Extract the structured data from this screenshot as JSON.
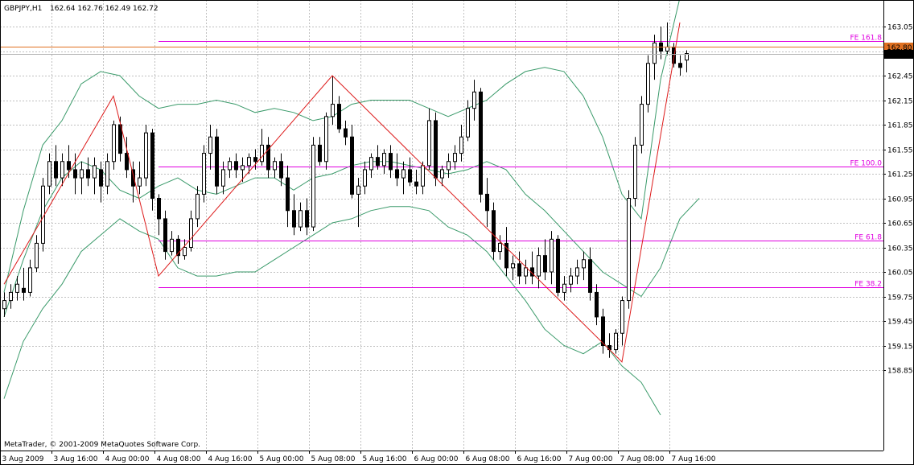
{
  "header": {
    "symbol": "GBPJPY,H1",
    "ohlc": "162.64 162.76 162.49 162.72"
  },
  "copyright": "MetaTrader, © 2001-2009 MetaQuotes Software Corp.",
  "colors": {
    "background": "#ffffff",
    "grid": "#c0c0c0",
    "bull_body": "#ffffff",
    "bear_body": "#000000",
    "candle_outline": "#000000",
    "bollinger": "#3a9a6a",
    "zigzag": "#dd1a1a",
    "fibo": "#e000e0",
    "orange_line": "#e07020",
    "orange_tag": "#e07020",
    "price_tag": "#000000"
  },
  "chart_data": {
    "type": "candlestick",
    "y_axis": {
      "min": 158.8,
      "max": 163.2,
      "ticks": [
        "163.05",
        "162.75",
        "162.45",
        "162.15",
        "161.85",
        "161.55",
        "161.25",
        "160.95",
        "160.65",
        "160.35",
        "160.05",
        "159.75",
        "159.45",
        "159.15",
        "158.85"
      ]
    },
    "x_axis": {
      "labels": [
        "3 Aug 2009",
        "3 Aug 16:00",
        "4 Aug 00:00",
        "4 Aug 08:00",
        "4 Aug 16:00",
        "5 Aug 00:00",
        "5 Aug 08:00",
        "5 Aug 16:00",
        "6 Aug 00:00",
        "6 Aug 08:00",
        "6 Aug 16:00",
        "7 Aug 00:00",
        "7 Aug 08:00",
        "7 Aug 16:00"
      ],
      "bars_per_label": 8
    },
    "price_tags": [
      {
        "value": 162.8,
        "text": "162.80",
        "kind": "orange"
      },
      {
        "value": 162.72,
        "text": "162.72",
        "kind": "current"
      }
    ],
    "fibo_levels": [
      {
        "label": "FE 161.8",
        "value": 162.87
      },
      {
        "label": "FE 100.0",
        "value": 161.34
      },
      {
        "label": "FE 61.8",
        "value": 160.43
      },
      {
        "label": "FE 38.2",
        "value": 159.86
      }
    ],
    "fibo_start_bar": 24,
    "zigzag": [
      {
        "bar": 0,
        "price": 159.9
      },
      {
        "bar": 17,
        "price": 162.2
      },
      {
        "bar": 24,
        "price": 160.0
      },
      {
        "bar": 51,
        "price": 162.45
      },
      {
        "bar": 96,
        "price": 158.95
      },
      {
        "bar": 105,
        "price": 163.1
      }
    ],
    "bollinger_upper": [
      [
        0,
        159.8
      ],
      [
        3,
        160.8
      ],
      [
        6,
        161.6
      ],
      [
        9,
        161.9
      ],
      [
        12,
        162.35
      ],
      [
        15,
        162.5
      ],
      [
        18,
        162.45
      ],
      [
        21,
        162.2
      ],
      [
        24,
        162.05
      ],
      [
        27,
        162.1
      ],
      [
        30,
        162.1
      ],
      [
        33,
        162.15
      ],
      [
        36,
        162.1
      ],
      [
        39,
        162.0
      ],
      [
        42,
        162.05
      ],
      [
        45,
        162.0
      ],
      [
        48,
        161.9
      ],
      [
        51,
        161.95
      ],
      [
        54,
        162.1
      ],
      [
        57,
        162.15
      ],
      [
        60,
        162.15
      ],
      [
        63,
        162.15
      ],
      [
        66,
        162.05
      ],
      [
        69,
        161.95
      ],
      [
        72,
        162.05
      ],
      [
        75,
        162.15
      ],
      [
        78,
        162.35
      ],
      [
        81,
        162.5
      ],
      [
        84,
        162.55
      ],
      [
        87,
        162.5
      ],
      [
        90,
        162.2
      ],
      [
        93,
        161.7
      ],
      [
        96,
        161.0
      ],
      [
        99,
        160.7
      ],
      [
        102,
        162.4
      ],
      [
        105,
        163.4
      ]
    ],
    "bollinger_middle": [
      [
        0,
        159.5
      ],
      [
        3,
        160.2
      ],
      [
        6,
        160.8
      ],
      [
        9,
        161.2
      ],
      [
        12,
        161.4
      ],
      [
        15,
        161.3
      ],
      [
        18,
        161.05
      ],
      [
        21,
        160.95
      ],
      [
        24,
        161.1
      ],
      [
        27,
        161.2
      ],
      [
        30,
        161.05
      ],
      [
        33,
        161.0
      ],
      [
        36,
        161.1
      ],
      [
        39,
        161.2
      ],
      [
        42,
        161.2
      ],
      [
        45,
        161.05
      ],
      [
        48,
        161.2
      ],
      [
        51,
        161.25
      ],
      [
        54,
        161.35
      ],
      [
        57,
        161.4
      ],
      [
        60,
        161.4
      ],
      [
        63,
        161.35
      ],
      [
        66,
        161.3
      ],
      [
        69,
        161.25
      ],
      [
        72,
        161.3
      ],
      [
        75,
        161.4
      ],
      [
        78,
        161.3
      ],
      [
        81,
        161.0
      ],
      [
        84,
        160.8
      ],
      [
        87,
        160.55
      ],
      [
        90,
        160.3
      ],
      [
        93,
        160.05
      ],
      [
        96,
        159.9
      ],
      [
        99,
        159.75
      ],
      [
        102,
        160.1
      ],
      [
        105,
        160.7
      ],
      [
        108,
        160.95
      ]
    ],
    "bollinger_lower": [
      [
        0,
        158.5
      ],
      [
        3,
        159.2
      ],
      [
        6,
        159.6
      ],
      [
        9,
        159.9
      ],
      [
        12,
        160.3
      ],
      [
        15,
        160.5
      ],
      [
        18,
        160.7
      ],
      [
        21,
        160.55
      ],
      [
        24,
        160.45
      ],
      [
        27,
        160.1
      ],
      [
        30,
        160.0
      ],
      [
        33,
        160.0
      ],
      [
        36,
        160.05
      ],
      [
        39,
        160.05
      ],
      [
        42,
        160.2
      ],
      [
        45,
        160.35
      ],
      [
        48,
        160.5
      ],
      [
        51,
        160.65
      ],
      [
        54,
        160.7
      ],
      [
        57,
        160.8
      ],
      [
        60,
        160.85
      ],
      [
        63,
        160.85
      ],
      [
        66,
        160.8
      ],
      [
        69,
        160.6
      ],
      [
        72,
        160.5
      ],
      [
        75,
        160.3
      ],
      [
        78,
        160.0
      ],
      [
        81,
        159.7
      ],
      [
        84,
        159.35
      ],
      [
        87,
        159.15
      ],
      [
        90,
        159.05
      ],
      [
        93,
        159.2
      ],
      [
        96,
        158.9
      ],
      [
        99,
        158.7
      ],
      [
        102,
        158.3
      ]
    ],
    "candles": [
      [
        159.6,
        159.8,
        159.5,
        159.7
      ],
      [
        159.7,
        159.9,
        159.6,
        159.8
      ],
      [
        159.8,
        160.0,
        159.7,
        159.9
      ],
      [
        159.85,
        160.1,
        159.7,
        159.8
      ],
      [
        159.8,
        160.2,
        159.75,
        160.1
      ],
      [
        160.1,
        160.5,
        160.05,
        160.4
      ],
      [
        160.4,
        161.2,
        160.3,
        161.1
      ],
      [
        161.1,
        161.5,
        161.0,
        161.4
      ],
      [
        161.4,
        161.6,
        161.1,
        161.2
      ],
      [
        161.2,
        161.5,
        161.1,
        161.4
      ],
      [
        161.4,
        161.6,
        161.2,
        161.3
      ],
      [
        161.3,
        161.5,
        161.0,
        161.2
      ],
      [
        161.2,
        161.4,
        161.0,
        161.3
      ],
      [
        161.3,
        161.45,
        161.1,
        161.2
      ],
      [
        161.2,
        161.45,
        161.0,
        161.35
      ],
      [
        161.3,
        161.4,
        160.9,
        161.1
      ],
      [
        161.1,
        161.5,
        161.0,
        161.4
      ],
      [
        161.4,
        161.9,
        161.3,
        161.85
      ],
      [
        161.85,
        161.95,
        161.4,
        161.5
      ],
      [
        161.5,
        161.7,
        161.2,
        161.3
      ],
      [
        161.3,
        161.4,
        160.9,
        161.1
      ],
      [
        161.1,
        161.4,
        161.0,
        161.2
      ],
      [
        161.2,
        161.85,
        161.1,
        161.75
      ],
      [
        161.75,
        161.8,
        160.8,
        160.95
      ],
      [
        160.95,
        161.0,
        160.5,
        160.7
      ],
      [
        160.7,
        160.8,
        160.2,
        160.3
      ],
      [
        160.3,
        160.55,
        160.25,
        160.45
      ],
      [
        160.45,
        160.5,
        160.15,
        160.25
      ],
      [
        160.25,
        160.45,
        160.2,
        160.35
      ],
      [
        160.35,
        160.8,
        160.3,
        160.7
      ],
      [
        160.7,
        161.1,
        160.6,
        161.0
      ],
      [
        161.0,
        161.6,
        160.9,
        161.5
      ],
      [
        161.5,
        161.85,
        161.3,
        161.7
      ],
      [
        161.7,
        161.8,
        161.0,
        161.1
      ],
      [
        161.1,
        161.4,
        161.0,
        161.3
      ],
      [
        161.3,
        161.45,
        161.2,
        161.4
      ],
      [
        161.4,
        161.5,
        161.2,
        161.3
      ],
      [
        161.3,
        161.45,
        161.15,
        161.35
      ],
      [
        161.35,
        161.5,
        161.25,
        161.45
      ],
      [
        161.45,
        161.55,
        161.3,
        161.4
      ],
      [
        161.4,
        161.8,
        161.35,
        161.6
      ],
      [
        161.6,
        161.7,
        161.2,
        161.3
      ],
      [
        161.3,
        161.45,
        161.2,
        161.4
      ],
      [
        161.4,
        161.5,
        161.1,
        161.2
      ],
      [
        161.2,
        161.35,
        160.6,
        160.8
      ],
      [
        160.8,
        161.0,
        160.5,
        160.6
      ],
      [
        160.6,
        160.9,
        160.55,
        160.8
      ],
      [
        160.8,
        160.95,
        160.5,
        160.6
      ],
      [
        160.6,
        161.7,
        160.55,
        161.6
      ],
      [
        161.6,
        161.7,
        161.35,
        161.4
      ],
      [
        161.4,
        162.0,
        161.3,
        161.95
      ],
      [
        161.95,
        162.45,
        161.85,
        162.1
      ],
      [
        162.1,
        162.2,
        161.75,
        161.8
      ],
      [
        161.8,
        161.9,
        161.6,
        161.7
      ],
      [
        161.7,
        161.85,
        160.95,
        161.0
      ],
      [
        161.0,
        161.2,
        160.6,
        161.1
      ],
      [
        161.1,
        161.4,
        161.0,
        161.3
      ],
      [
        161.3,
        161.5,
        161.2,
        161.45
      ],
      [
        161.45,
        161.6,
        161.3,
        161.35
      ],
      [
        161.35,
        161.55,
        161.25,
        161.5
      ],
      [
        161.5,
        161.6,
        161.2,
        161.3
      ],
      [
        161.3,
        161.5,
        161.1,
        161.2
      ],
      [
        161.2,
        161.4,
        161.0,
        161.3
      ],
      [
        161.3,
        161.45,
        161.1,
        161.15
      ],
      [
        161.15,
        161.3,
        161.0,
        161.1
      ],
      [
        161.1,
        161.4,
        161.0,
        161.35
      ],
      [
        161.35,
        162.05,
        161.3,
        161.9
      ],
      [
        161.9,
        162.0,
        161.1,
        161.2
      ],
      [
        161.2,
        161.35,
        161.1,
        161.3
      ],
      [
        161.3,
        161.5,
        161.2,
        161.4
      ],
      [
        161.4,
        161.6,
        161.3,
        161.5
      ],
      [
        161.5,
        161.85,
        161.4,
        161.7
      ],
      [
        161.7,
        162.15,
        161.65,
        162.05
      ],
      [
        162.05,
        162.4,
        161.9,
        162.25
      ],
      [
        162.25,
        162.3,
        160.9,
        161.0
      ],
      [
        161.0,
        161.2,
        160.6,
        160.8
      ],
      [
        160.8,
        160.9,
        160.2,
        160.3
      ],
      [
        160.3,
        160.5,
        160.2,
        160.4
      ],
      [
        160.4,
        160.6,
        160.0,
        160.1
      ],
      [
        160.1,
        160.25,
        159.95,
        160.15
      ],
      [
        160.15,
        160.3,
        159.9,
        160.0
      ],
      [
        160.0,
        160.2,
        159.9,
        160.1
      ],
      [
        160.1,
        160.3,
        159.9,
        160.0
      ],
      [
        160.0,
        160.35,
        159.85,
        160.25
      ],
      [
        160.25,
        160.45,
        159.95,
        160.05
      ],
      [
        160.05,
        160.55,
        159.9,
        160.45
      ],
      [
        160.45,
        160.5,
        159.75,
        159.8
      ],
      [
        159.8,
        160.0,
        159.7,
        159.9
      ],
      [
        159.9,
        160.1,
        159.8,
        160.0
      ],
      [
        160.0,
        160.2,
        159.9,
        160.1
      ],
      [
        160.1,
        160.3,
        159.95,
        160.2
      ],
      [
        160.2,
        160.35,
        159.7,
        159.8
      ],
      [
        159.8,
        159.9,
        159.4,
        159.5
      ],
      [
        159.5,
        159.6,
        159.05,
        159.15
      ],
      [
        159.15,
        159.3,
        159.0,
        159.1
      ],
      [
        159.1,
        159.35,
        159.05,
        159.3
      ],
      [
        159.3,
        159.75,
        159.15,
        159.7
      ],
      [
        159.7,
        161.05,
        159.6,
        160.95
      ],
      [
        160.95,
        161.7,
        160.85,
        161.6
      ],
      [
        161.6,
        162.2,
        161.5,
        162.1
      ],
      [
        162.1,
        162.7,
        162.0,
        162.6
      ],
      [
        162.6,
        162.95,
        162.4,
        162.85
      ],
      [
        162.85,
        163.05,
        162.65,
        162.75
      ],
      [
        162.75,
        163.1,
        162.7,
        162.8
      ],
      [
        162.8,
        162.85,
        162.55,
        162.6
      ],
      [
        162.6,
        162.7,
        162.45,
        162.55
      ],
      [
        162.64,
        162.76,
        162.49,
        162.72
      ]
    ]
  }
}
